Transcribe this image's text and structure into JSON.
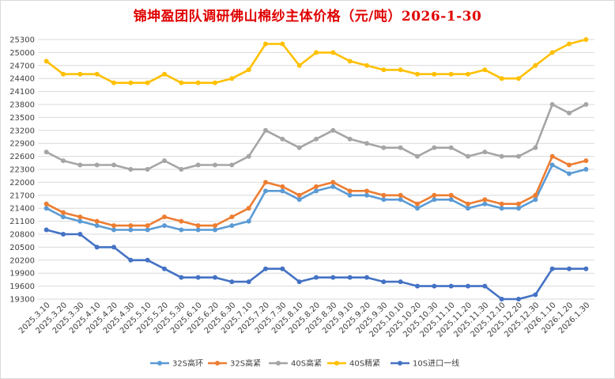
{
  "chart_data": {
    "type": "line",
    "title": "锦坤盈团队调研佛山棉纱主体价格（元/吨）2026-1-30",
    "xlabel": "",
    "ylabel": "",
    "ylim": [
      19300,
      25300
    ],
    "yticks": [
      19300,
      19600,
      19900,
      20200,
      20500,
      20800,
      21100,
      21400,
      21700,
      22000,
      22300,
      22600,
      22900,
      23200,
      23500,
      23800,
      24100,
      24400,
      24700,
      25000,
      25300
    ],
    "grid": true,
    "legend": "bottom",
    "categories": [
      "2025.3.10",
      "2025.3.20",
      "2025.3.30",
      "2025.4.10",
      "2025.4.20",
      "2025.4.30",
      "2025.5.10",
      "2025.5.20",
      "2025.5.30",
      "2025.6.10",
      "2025.6.20",
      "2025.6.30",
      "2025.7.10",
      "2025.7.20",
      "2025.7.30",
      "2025.8.10",
      "2025.8.20",
      "2025.8.30",
      "2025.9.10",
      "2025.9.20",
      "2025.9.30",
      "2025.10.10",
      "2025.10.20",
      "2025.10.30",
      "2025.11.10",
      "2025.11.20",
      "2025.11.30",
      "2025.12.10",
      "2025.12.20",
      "2025.12.30",
      "2026.1.10",
      "2026.1.20",
      "2026.1.30"
    ],
    "series": [
      {
        "name": "32S高环",
        "color": "#5b9bd5",
        "values": [
          21400,
          21200,
          21100,
          21000,
          20900,
          20900,
          20900,
          21000,
          20900,
          20900,
          20900,
          21000,
          21100,
          21800,
          21800,
          21600,
          21800,
          21900,
          21700,
          21700,
          21600,
          21600,
          21400,
          21600,
          21600,
          21400,
          21500,
          21400,
          21400,
          21600,
          22400,
          22200,
          22300
        ]
      },
      {
        "name": "32S高紧",
        "color": "#ed7d31",
        "values": [
          21500,
          21300,
          21200,
          21100,
          21000,
          21000,
          21000,
          21200,
          21100,
          21000,
          21000,
          21200,
          21400,
          22000,
          21900,
          21700,
          21900,
          22000,
          21800,
          21800,
          21700,
          21700,
          21500,
          21700,
          21700,
          21500,
          21600,
          21500,
          21500,
          21700,
          22600,
          22400,
          22500
        ]
      },
      {
        "name": "40S高紧",
        "color": "#a5a5a5",
        "values": [
          22700,
          22500,
          22400,
          22400,
          22400,
          22300,
          22300,
          22500,
          22300,
          22400,
          22400,
          22400,
          22600,
          23200,
          23000,
          22800,
          23000,
          23200,
          23000,
          22900,
          22800,
          22800,
          22600,
          22800,
          22800,
          22600,
          22700,
          22600,
          22600,
          22800,
          23800,
          23600,
          23800
        ]
      },
      {
        "name": "40S精紧",
        "color": "#ffc000",
        "values": [
          24800,
          24500,
          24500,
          24500,
          24300,
          24300,
          24300,
          24500,
          24300,
          24300,
          24300,
          24400,
          24600,
          25200,
          25200,
          24700,
          25000,
          25000,
          24800,
          24700,
          24600,
          24600,
          24500,
          24500,
          24500,
          24500,
          24600,
          24400,
          24400,
          24700,
          25000,
          25200,
          25300
        ]
      },
      {
        "name": "10S进口一线",
        "color": "#4472c4",
        "values": [
          20900,
          20800,
          20800,
          20500,
          20500,
          20200,
          20200,
          20000,
          19800,
          19800,
          19800,
          19700,
          19700,
          20000,
          20000,
          19700,
          19800,
          19800,
          19800,
          19800,
          19700,
          19700,
          19600,
          19600,
          19600,
          19600,
          19600,
          19300,
          19300,
          19400,
          20000,
          20000,
          20000
        ]
      }
    ]
  }
}
